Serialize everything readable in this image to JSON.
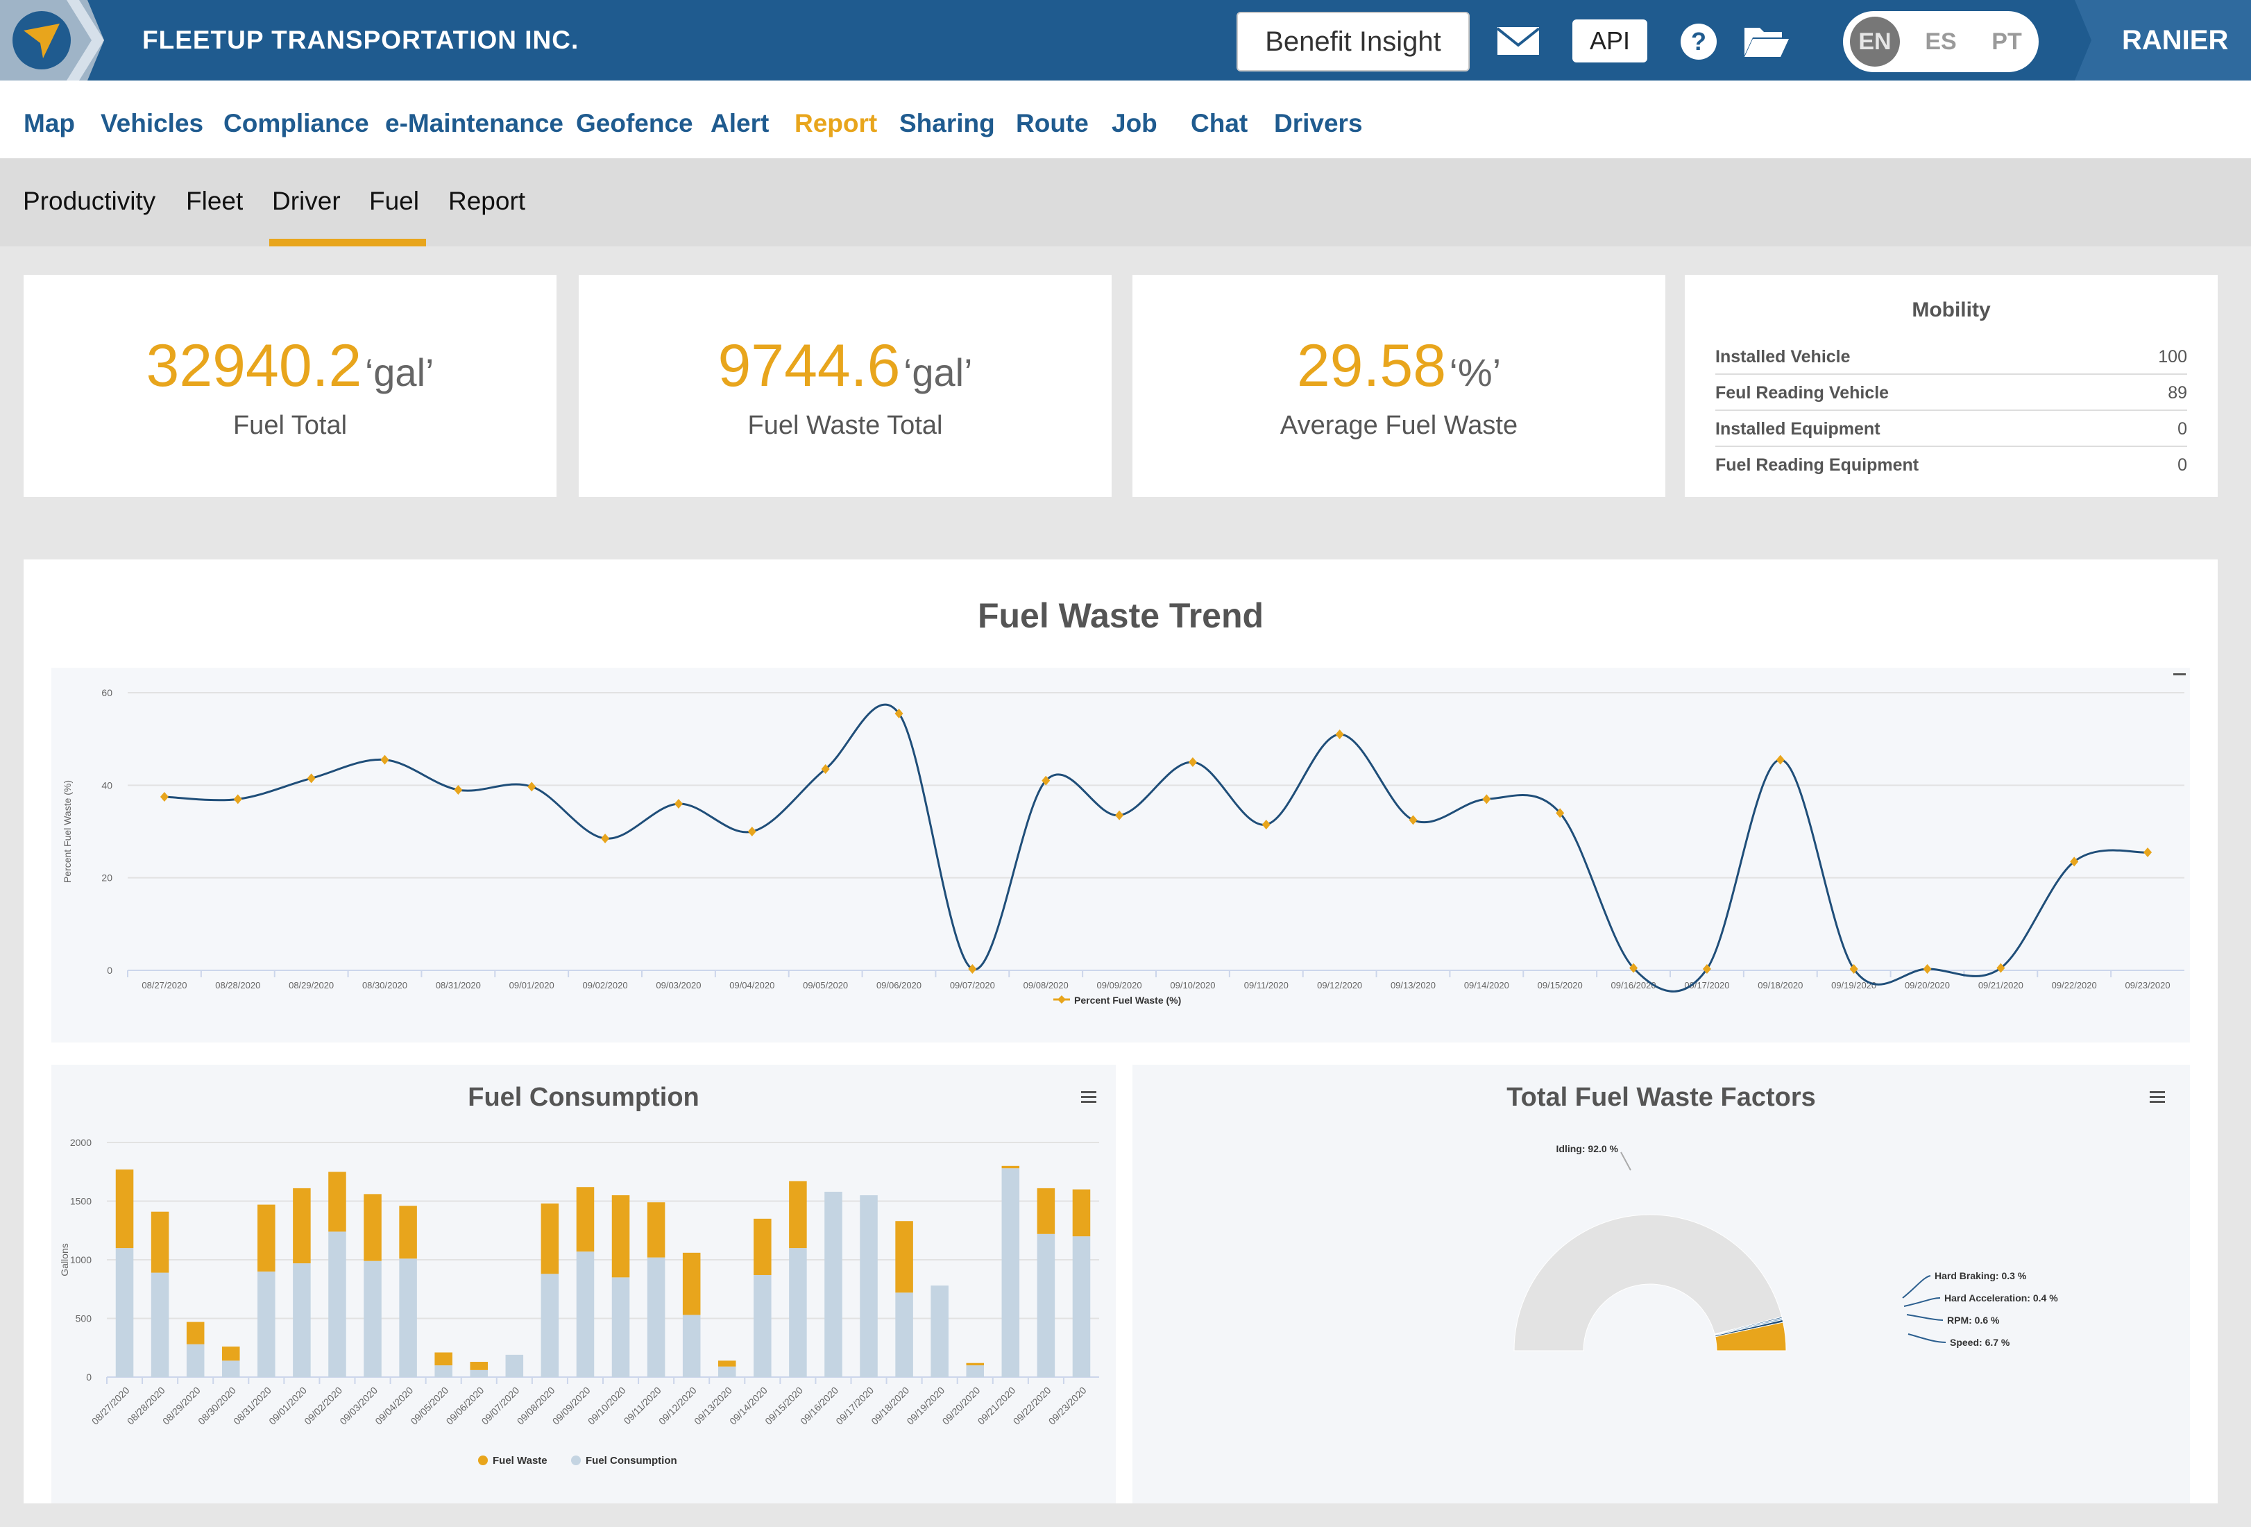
{
  "header": {
    "company": "FLEETUP TRANSPORTATION INC.",
    "benefit_insight": "Benefit Insight",
    "api": "API",
    "languages": [
      "EN",
      "ES",
      "PT"
    ],
    "active_language": "EN",
    "user": "RANIER",
    "icons": [
      "logo-arrow-icon",
      "mail-icon",
      "help-icon",
      "folder-icon"
    ]
  },
  "main_nav": [
    "Map",
    "Vehicles",
    "Compliance",
    "e-Maintenance",
    "Geofence",
    "Alert",
    "Report",
    "Sharing",
    "Route",
    "Job",
    "Chat",
    "Drivers"
  ],
  "main_nav_active": "Report",
  "sub_nav": [
    "Productivity",
    "Fleet",
    "Driver",
    "Fuel",
    "Report"
  ],
  "sub_nav_active": "Driver",
  "kpis": [
    {
      "value": "32940.2",
      "unit": "‘gal’",
      "label": "Fuel Total"
    },
    {
      "value": "9744.6",
      "unit": "‘gal’",
      "label": "Fuel Waste Total"
    },
    {
      "value": "29.58",
      "unit": "‘%’",
      "label": "Average Fuel Waste"
    }
  ],
  "mobility": {
    "title": "Mobility",
    "rows": [
      {
        "label": "Installed Vehicle",
        "value": "100"
      },
      {
        "label": "Feul Reading Vehicle",
        "value": "89"
      },
      {
        "label": "Installed Equipment",
        "value": "0"
      },
      {
        "label": "Fuel Reading Equipment",
        "value": "0"
      }
    ]
  },
  "colors": {
    "accent": "#e8a51c",
    "brand": "#1f5b8f",
    "line": "#1f4e79",
    "consumption": "#c4d4e2",
    "pie_gray": "#e3e3e3"
  },
  "chart_data": [
    {
      "type": "line",
      "title": "Fuel Waste Trend",
      "ylabel": "Percent Fuel Waste (%)",
      "ylim": [
        0,
        60
      ],
      "yticks": [
        0,
        20,
        40,
        60
      ],
      "x": [
        "08/27/2020",
        "08/28/2020",
        "08/29/2020",
        "08/30/2020",
        "08/31/2020",
        "09/01/2020",
        "09/02/2020",
        "09/03/2020",
        "09/04/2020",
        "09/05/2020",
        "09/06/2020",
        "09/07/2020",
        "09/08/2020",
        "09/09/2020",
        "09/10/2020",
        "09/11/2020",
        "09/12/2020",
        "09/13/2020",
        "09/14/2020",
        "09/15/2020",
        "09/16/2020",
        "09/17/2020",
        "09/18/2020",
        "09/19/2020",
        "09/20/2020",
        "09/21/2020",
        "09/22/2020",
        "09/23/2020"
      ],
      "series": [
        {
          "name": "Percent Fuel Waste (%)",
          "values": [
            37.5,
            37,
            41.5,
            45.5,
            39,
            39.7,
            28.5,
            36,
            30,
            43.5,
            55.5,
            0.3,
            41,
            33.5,
            45,
            31.5,
            51,
            32.5,
            37,
            34,
            0.5,
            0.3,
            45.5,
            0.3,
            0.3,
            0.5,
            23.5,
            25.5
          ]
        }
      ],
      "legend": "bottom-center",
      "grid": true
    },
    {
      "type": "bar",
      "stacked": true,
      "title": "Fuel Consumption",
      "ylabel": "Gallons",
      "ylim": [
        0,
        2000
      ],
      "yticks": [
        0,
        500,
        1000,
        1500,
        2000
      ],
      "categories": [
        "08/27/2020",
        "08/28/2020",
        "08/29/2020",
        "08/30/2020",
        "08/31/2020",
        "09/01/2020",
        "09/02/2020",
        "09/03/2020",
        "09/04/2020",
        "09/05/2020",
        "09/06/2020",
        "09/07/2020",
        "09/08/2020",
        "09/09/2020",
        "09/10/2020",
        "09/11/2020",
        "09/12/2020",
        "09/13/2020",
        "09/14/2020",
        "09/15/2020",
        "09/16/2020",
        "09/17/2020",
        "09/18/2020",
        "09/19/2020",
        "09/20/2020",
        "09/21/2020",
        "09/22/2020",
        "09/23/2020"
      ],
      "series": [
        {
          "name": "Fuel Consumption",
          "values": [
            1100,
            890,
            280,
            140,
            900,
            970,
            1240,
            990,
            1010,
            100,
            60,
            190,
            880,
            1070,
            850,
            1020,
            530,
            90,
            870,
            1100,
            1580,
            1550,
            720,
            780,
            100,
            1780,
            1220,
            1200
          ]
        },
        {
          "name": "Fuel Waste",
          "values": [
            670,
            520,
            190,
            120,
            570,
            640,
            510,
            570,
            450,
            110,
            70,
            0,
            600,
            550,
            700,
            470,
            530,
            50,
            480,
            570,
            0,
            0,
            610,
            0,
            20,
            20,
            390,
            400
          ]
        }
      ],
      "legend": "bottom-center",
      "grid": true
    },
    {
      "type": "pie",
      "title": "Total Fuel Waste Factors",
      "slices": [
        {
          "label": "Idling: 92.0 %",
          "value": 92.0
        },
        {
          "label": "Hard Braking: 0.3 %",
          "value": 0.3
        },
        {
          "label": "Hard Acceleration: 0.4 %",
          "value": 0.4
        },
        {
          "label": "RPM: 0.6 %",
          "value": 0.6
        },
        {
          "label": "Speed: 6.7 %",
          "value": 6.7
        }
      ]
    }
  ]
}
